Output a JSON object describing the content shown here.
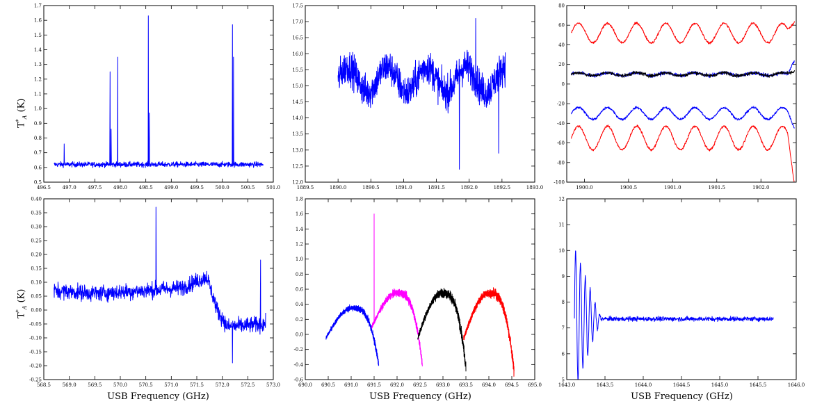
{
  "chart_data": [
    {
      "panel": "top-left",
      "type": "line",
      "ylabel": "T*A (K)",
      "xlabel": "",
      "xlim": [
        496.5,
        501.0
      ],
      "ylim": [
        0.5,
        1.7
      ],
      "xticks": [
        "496.5",
        "497.0",
        "497.5",
        "498.0",
        "498.5",
        "499.0",
        "499.5",
        "500.0",
        "500.5",
        "501.0"
      ],
      "yticks": [
        "0.5",
        "0.6",
        "0.7",
        "0.8",
        "0.9",
        "1.0",
        "1.1",
        "1.2",
        "1.3",
        "1.4",
        "1.5",
        "1.6",
        "1.7"
      ],
      "series": [
        {
          "color": "#0000ff",
          "baseline": 0.62,
          "noise": 0.03,
          "x_range": [
            496.7,
            500.8
          ],
          "spikes": [
            [
              496.9,
              0.76
            ],
            [
              497.8,
              1.25
            ],
            [
              497.82,
              0.86
            ],
            [
              497.95,
              1.35
            ],
            [
              498.55,
              1.63
            ],
            [
              498.57,
              0.97
            ],
            [
              500.2,
              1.57
            ],
            [
              500.22,
              1.35
            ]
          ]
        }
      ]
    },
    {
      "panel": "top-middle",
      "type": "line",
      "ylabel": "",
      "xlabel": "",
      "xlim": [
        1889.5,
        1893.0
      ],
      "ylim": [
        12.0,
        17.5
      ],
      "xticks": [
        "1889.5",
        "1890.0",
        "1890.5",
        "1891.0",
        "1891.5",
        "1892.0",
        "1892.5",
        "1893.0"
      ],
      "yticks": [
        "12.0",
        "12.5",
        "13.0",
        "13.5",
        "14.0",
        "14.5",
        "15.0",
        "15.5",
        "16.0",
        "16.5",
        "17.0",
        "17.5"
      ],
      "series": [
        {
          "color": "#0000ff",
          "baseline": 15.2,
          "noise": 0.9,
          "x_range": [
            1890.0,
            1892.55
          ],
          "wave_amp": 0.4,
          "wave_period": 0.6,
          "spikes": [
            [
              1891.85,
              12.4
            ],
            [
              1892.1,
              17.1
            ],
            [
              1892.45,
              12.9
            ]
          ]
        }
      ]
    },
    {
      "panel": "top-right",
      "type": "line",
      "ylabel": "",
      "xlabel": "",
      "xlim": [
        1899.8,
        1902.4
      ],
      "ylim": [
        -100,
        80
      ],
      "xticks": [
        "1900.0",
        "1900.5",
        "1901.0",
        "1901.5",
        "1902.0"
      ],
      "yticks": [
        "80",
        "60",
        "40",
        "20",
        "0",
        "-20",
        "-40",
        "-60",
        "-80",
        "-100"
      ],
      "series": [
        {
          "color": "#ff0000",
          "baseline": 52,
          "noise": 2,
          "x_range": [
            1899.85,
            1902.38
          ],
          "wave_amp": 10,
          "wave_period": 0.33,
          "end_value": 72
        },
        {
          "color": "#0000ff",
          "baseline": 10,
          "noise": 3,
          "x_range": [
            1899.85,
            1902.38
          ],
          "wave_amp": 1.5,
          "wave_period": 0.33,
          "end_value": 25
        },
        {
          "color": "#000000",
          "baseline": 10,
          "noise": 3,
          "x_range": [
            1899.85,
            1902.38
          ],
          "wave_amp": 1.5,
          "wave_period": 0.33,
          "end_value": 14
        },
        {
          "color": "#0000ff",
          "baseline": -30,
          "noise": 2,
          "x_range": [
            1899.85,
            1902.38
          ],
          "wave_amp": 6,
          "wave_period": 0.33,
          "end_value": -40
        },
        {
          "color": "#ff0000",
          "baseline": -55,
          "noise": 2,
          "x_range": [
            1899.85,
            1902.38
          ],
          "wave_amp": 12,
          "wave_period": 0.33,
          "end_value": -92
        }
      ]
    },
    {
      "panel": "bottom-left",
      "type": "line",
      "ylabel": "T*A (K)",
      "xlabel": "USB Frequency (GHz)",
      "xlim": [
        568.5,
        573.0
      ],
      "ylim": [
        -0.25,
        0.4
      ],
      "xticks": [
        "568.5",
        "569.0",
        "569.5",
        "570.0",
        "570.5",
        "571.0",
        "571.5",
        "572.0",
        "572.5",
        "573.0"
      ],
      "yticks": [
        "-0.25",
        "-0.20",
        "-0.15",
        "-0.10",
        "-0.05",
        "0.00",
        "0.05",
        "0.10",
        "0.15",
        "0.20",
        "0.25",
        "0.30",
        "0.35",
        "0.40"
      ],
      "series": [
        {
          "color": "#0000ff",
          "x_range": [
            568.7,
            572.85
          ],
          "noise": 0.035,
          "profile": [
            [
              568.7,
              0.07
            ],
            [
              569.5,
              0.06
            ],
            [
              570.5,
              0.07
            ],
            [
              571.2,
              0.08
            ],
            [
              571.7,
              0.12
            ],
            [
              571.9,
              0.0
            ],
            [
              572.1,
              -0.06
            ],
            [
              572.85,
              -0.05
            ]
          ],
          "spikes": [
            [
              570.7,
              0.37
            ],
            [
              572.75,
              0.18
            ],
            [
              572.2,
              -0.19
            ]
          ]
        }
      ]
    },
    {
      "panel": "bottom-middle",
      "type": "line",
      "ylabel": "",
      "xlabel": "USB Frequency (GHz)",
      "xlim": [
        690.0,
        695.0
      ],
      "ylim": [
        -0.6,
        1.8
      ],
      "xticks": [
        "690.0",
        "690.5",
        "691.0",
        "691.5",
        "692.0",
        "692.5",
        "693.0",
        "693.5",
        "694.0",
        "694.5",
        "695.0"
      ],
      "yticks": [
        "-0.6",
        "-0.4",
        "-0.2",
        "0.0",
        "0.2",
        "0.4",
        "0.6",
        "0.8",
        "1.0",
        "1.2",
        "1.4",
        "1.6",
        "1.8"
      ],
      "series": [
        {
          "color": "#0000ff",
          "x_range": [
            690.45,
            691.6
          ],
          "noise": 0.05,
          "arch_top": 0.35,
          "arch_ends": [
            -0.05,
            -0.4
          ]
        },
        {
          "color": "#ff00ff",
          "x_range": [
            691.45,
            692.55
          ],
          "noise": 0.06,
          "arch_top": 0.55,
          "arch_ends": [
            0.1,
            -0.4
          ],
          "spikes": [
            [
              691.5,
              1.6
            ]
          ]
        },
        {
          "color": "#000000",
          "x_range": [
            692.45,
            693.5
          ],
          "noise": 0.07,
          "arch_top": 0.55,
          "arch_ends": [
            -0.05,
            -0.45
          ]
        },
        {
          "color": "#ff0000",
          "x_range": [
            693.45,
            694.55
          ],
          "noise": 0.07,
          "arch_top": 0.55,
          "arch_ends": [
            -0.05,
            -0.5
          ]
        }
      ]
    },
    {
      "panel": "bottom-right",
      "type": "line",
      "ylabel": "",
      "xlabel": "USB Frequency (GHz)",
      "xlim": [
        1643.0,
        1646.0
      ],
      "ylim": [
        5,
        12
      ],
      "xticks": [
        "1643.0",
        "1643.5",
        "1644.0",
        "1644.5",
        "1645.0",
        "1645.5",
        "1646.0"
      ],
      "yticks": [
        "5",
        "6",
        "7",
        "8",
        "9",
        "10",
        "11",
        "12"
      ],
      "series": [
        {
          "color": "#0000ff",
          "x_range": [
            1643.1,
            1645.7
          ],
          "baseline": 7.35,
          "noise": 0.15,
          "ringing_start": 1643.1,
          "ringing_end": 1643.45,
          "ringing_amp": 2.8
        }
      ]
    }
  ]
}
